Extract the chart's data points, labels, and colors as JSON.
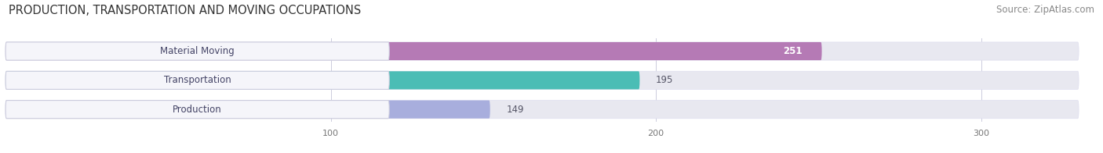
{
  "title": "PRODUCTION, TRANSPORTATION AND MOVING OCCUPATIONS",
  "source": "Source: ZipAtlas.com",
  "categories": [
    "Material Moving",
    "Transportation",
    "Production"
  ],
  "values": [
    251,
    195,
    149
  ],
  "bar_colors": [
    "#b57ab5",
    "#4bbdb5",
    "#a8aedd"
  ],
  "bar_bg_color": "#e8e8f0",
  "label_bg_color": "#f5f5fa",
  "xlim": [
    0,
    330
  ],
  "xticks": [
    100,
    200,
    300
  ],
  "value_colors": [
    "#ffffff",
    "#555555",
    "#555555"
  ],
  "value_inside": [
    true,
    false,
    false
  ],
  "title_fontsize": 10.5,
  "source_fontsize": 8.5,
  "label_fontsize": 8.5,
  "value_fontsize": 8.5,
  "background_color": "#ffffff"
}
